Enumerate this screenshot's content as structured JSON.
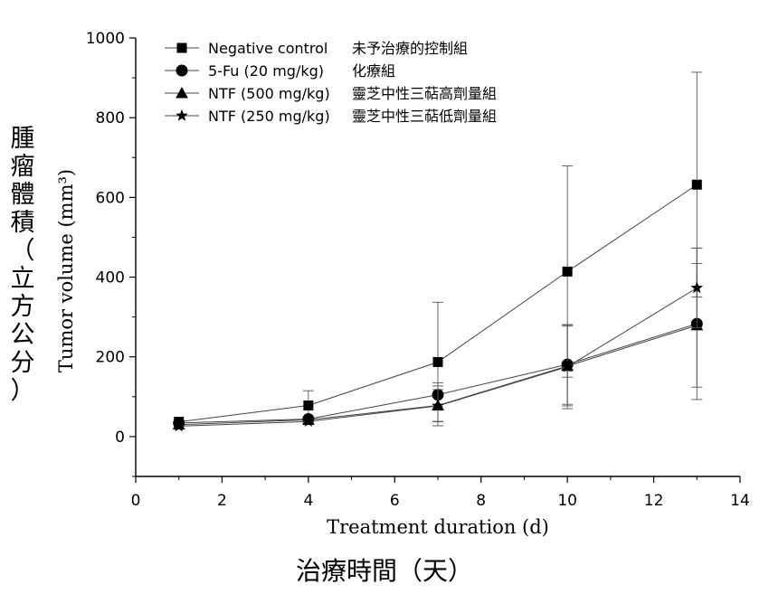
{
  "chart_data": {
    "type": "line",
    "x": [
      1,
      4,
      7,
      10,
      13
    ],
    "xlim": [
      0,
      14
    ],
    "ylim": [
      -100,
      1000
    ],
    "xticks": [
      0,
      2,
      4,
      6,
      8,
      10,
      12,
      14
    ],
    "yticks": [
      0,
      200,
      400,
      600,
      800,
      1000
    ],
    "xlabel": "Treatment duration (d)",
    "ylabel": "Tumor volume (mm³)",
    "ylabel_cn": "腫瘤體積（立方公分）",
    "xlabel_cn": "治療時間（天）",
    "grid": false,
    "legend_position": "top-left",
    "series": [
      {
        "name": "Negative control",
        "name_cn": "未予治療的控制組",
        "marker": "square",
        "values": [
          37,
          78,
          187,
          414,
          632
        ],
        "errors": [
          0,
          37,
          150,
          265,
          282
        ]
      },
      {
        "name": "5-Fu (20 mg/kg)",
        "name_cn": "化療組",
        "marker": "circle",
        "values": [
          34,
          44,
          105,
          181,
          283
        ],
        "errors": [
          0,
          0,
          30,
          100,
          190
        ]
      },
      {
        "name": "NTF (500 mg/kg)",
        "name_cn": "靈芝中性三萜高劑量組",
        "marker": "triangle",
        "values": [
          30,
          42,
          78,
          177,
          279
        ],
        "errors": [
          0,
          0,
          40,
          100,
          155
        ]
      },
      {
        "name": "NTF (250 mg/kg)",
        "name_cn": "靈芝中性三萜低劑量組",
        "marker": "star",
        "values": [
          26,
          38,
          77,
          175,
          373
        ],
        "errors": [
          0,
          0,
          50,
          105,
          100
        ]
      }
    ]
  }
}
